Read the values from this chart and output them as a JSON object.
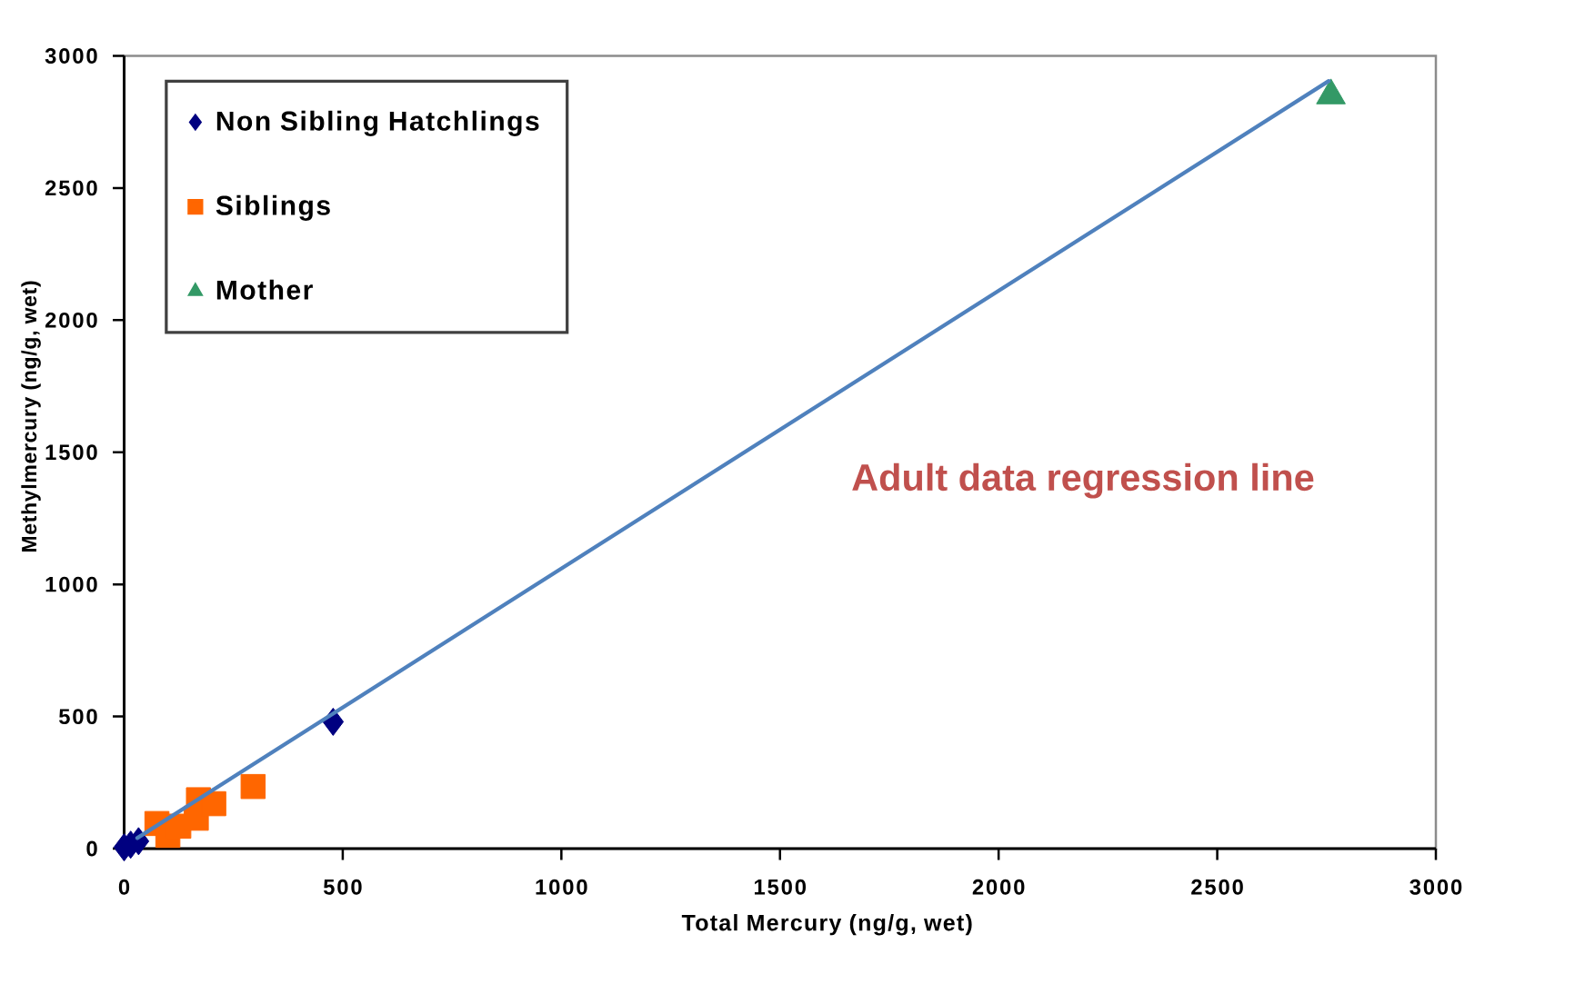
{
  "chart_data": {
    "type": "scatter",
    "xlabel": "Total Mercury (ng/g, wet)",
    "ylabel": "Methylmercury (ng/g, wet)",
    "annotations": [
      "Adult data regression line"
    ],
    "xlim": [
      0,
      3000
    ],
    "ylim": [
      0,
      3000
    ],
    "xticks": [
      0,
      500,
      1000,
      1500,
      2000,
      2500,
      3000
    ],
    "yticks": [
      0,
      500,
      1000,
      1500,
      2000,
      2500,
      3000
    ],
    "legend": "top left",
    "series": [
      {
        "name": "Non Sibling Hatchlings",
        "color": "#000080",
        "marker": "diamond",
        "x": [
          0,
          15,
          33,
          478
        ],
        "values": [
          5,
          15,
          28,
          480
        ]
      },
      {
        "name": "Siblings",
        "color": "#ff6600",
        "marker": "square",
        "x": [
          75,
          100,
          125,
          165,
          170,
          205,
          295
        ],
        "values": [
          95,
          50,
          85,
          115,
          185,
          170,
          235
        ]
      },
      {
        "name": "Mother",
        "color": "#339966",
        "marker": "triangle",
        "x": [
          2760
        ],
        "values": [
          2850
        ]
      },
      {
        "type": "line",
        "color": "#4f81bd",
        "marker": "none",
        "x": [
          30,
          2755
        ],
        "values": [
          40,
          2905
        ]
      }
    ]
  }
}
